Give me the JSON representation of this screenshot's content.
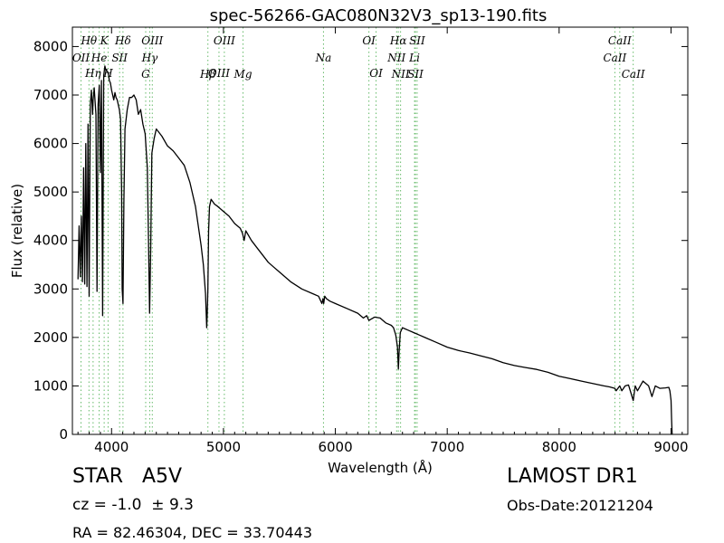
{
  "chart_data": {
    "type": "line",
    "title": "spec-56266-GAC080N32V3_sp13-190.fits",
    "xlabel": "Wavelength (Å)",
    "ylabel": "Flux (relative)",
    "xlim": [
      3650,
      9150
    ],
    "ylim": [
      0,
      8400
    ],
    "x_ticks": [
      4000,
      5000,
      6000,
      7000,
      8000,
      9000
    ],
    "y_ticks": [
      0,
      1000,
      2000,
      3000,
      4000,
      5000,
      6000,
      7000,
      8000
    ],
    "grid": false,
    "series": [
      {
        "x": [
          3700,
          3710,
          3720,
          3730,
          3740,
          3750,
          3760,
          3770,
          3780,
          3790,
          3800,
          3810,
          3820,
          3830,
          3835,
          3845,
          3860,
          3870,
          3880,
          3890,
          3900,
          3910,
          3920,
          3930,
          3940,
          3950,
          3960,
          3970,
          3980,
          3990,
          4000,
          4010,
          4020,
          4030,
          4040,
          4050,
          4060,
          4070,
          4080,
          4090,
          4095,
          4102,
          4110,
          4120,
          4140,
          4160,
          4180,
          4200,
          4220,
          4240,
          4260,
          4280,
          4300,
          4320,
          4330,
          4340,
          4350,
          4360,
          4380,
          4400,
          4450,
          4500,
          4550,
          4600,
          4650,
          4700,
          4750,
          4800,
          4820,
          4840,
          4850,
          4855,
          4861,
          4867,
          4875,
          4890,
          4920,
          4950,
          5000,
          5050,
          5100,
          5150,
          5170,
          5185,
          5200,
          5250,
          5300,
          5350,
          5400,
          5450,
          5500,
          5600,
          5700,
          5800,
          5850,
          5880,
          5890,
          5896,
          5905,
          5920,
          5950,
          6000,
          6100,
          6200,
          6250,
          6280,
          6300,
          6350,
          6400,
          6450,
          6500,
          6520,
          6540,
          6555,
          6563,
          6570,
          6580,
          6600,
          6650,
          6700,
          6750,
          6800,
          6900,
          7000,
          7100,
          7200,
          7300,
          7400,
          7500,
          7600,
          7650,
          7700,
          7800,
          7900,
          8000,
          8100,
          8200,
          8300,
          8400,
          8450,
          8498,
          8510,
          8542,
          8560,
          8590,
          8620,
          8662,
          8680,
          8700,
          8750,
          8800,
          8830,
          8860,
          8900,
          8950,
          8980,
          8990,
          9000,
          9005,
          9010
        ],
        "y": [
          3200,
          4300,
          3250,
          4500,
          3150,
          5500,
          3100,
          6000,
          3050,
          6400,
          2850,
          6800,
          7100,
          6600,
          6900,
          7150,
          6600,
          2950,
          6800,
          7200,
          5400,
          7300,
          2450,
          7400,
          7600,
          7500,
          7500,
          7450,
          7300,
          7250,
          7100,
          7000,
          6900,
          7050,
          6950,
          6900,
          6800,
          6700,
          6500,
          5000,
          3000,
          2700,
          4800,
          6300,
          6700,
          6950,
          6950,
          7000,
          6900,
          6600,
          6700,
          6400,
          6200,
          5500,
          4000,
          2500,
          3800,
          5800,
          6100,
          6300,
          6150,
          5950,
          5850,
          5700,
          5550,
          5200,
          4700,
          3900,
          3500,
          2900,
          2200,
          2500,
          3000,
          4200,
          4700,
          4850,
          4750,
          4700,
          4600,
          4500,
          4350,
          4250,
          4150,
          4000,
          4200,
          4000,
          3850,
          3700,
          3550,
          3450,
          3350,
          3150,
          3000,
          2900,
          2850,
          2700,
          2800,
          2700,
          2850,
          2800,
          2750,
          2700,
          2600,
          2500,
          2400,
          2450,
          2350,
          2420,
          2400,
          2300,
          2250,
          2200,
          2050,
          1800,
          1350,
          1700,
          2100,
          2200,
          2150,
          2100,
          2050,
          2000,
          1900,
          1800,
          1730,
          1680,
          1620,
          1560,
          1480,
          1420,
          1400,
          1380,
          1340,
          1280,
          1200,
          1150,
          1100,
          1050,
          1000,
          980,
          950,
          900,
          1000,
          900,
          1000,
          1020,
          700,
          1000,
          900,
          1100,
          1000,
          780,
          1000,
          950,
          960,
          970,
          900,
          700,
          300,
          0
        ]
      }
    ],
    "annotations": [
      {
        "label": "OII",
        "x": 3727,
        "row": 2
      },
      {
        "label": "Hθ",
        "x": 3798,
        "row": 1
      },
      {
        "label": "Hη",
        "x": 3835,
        "row": 3
      },
      {
        "label": "He",
        "x": 3889,
        "row": 2
      },
      {
        "label": "K",
        "x": 3934,
        "row": 1
      },
      {
        "label": "H",
        "x": 3969,
        "row": 3
      },
      {
        "label": "SII",
        "x": 4072,
        "row": 2
      },
      {
        "label": "Hδ",
        "x": 4102,
        "row": 1
      },
      {
        "label": "G",
        "x": 4305,
        "row": 4
      },
      {
        "label": "Hγ",
        "x": 4341,
        "row": 2
      },
      {
        "label": "OIII",
        "x": 4364,
        "row": 1
      },
      {
        "label": "Hβ",
        "x": 4861,
        "row": 4
      },
      {
        "label": "OIII",
        "x": 4960,
        "row": 3
      },
      {
        "label": "OIII",
        "x": 5008,
        "row": 1
      },
      {
        "label": "Mg",
        "x": 5175,
        "row": 4
      },
      {
        "label": "Na",
        "x": 5894,
        "row": 2
      },
      {
        "label": "OI",
        "x": 6300,
        "row": 1
      },
      {
        "label": "OI",
        "x": 6364,
        "row": 3
      },
      {
        "label": "NII",
        "x": 6548,
        "row": 2
      },
      {
        "label": "Hα",
        "x": 6563,
        "row": 1
      },
      {
        "label": "NII",
        "x": 6583,
        "row": 4
      },
      {
        "label": "Li",
        "x": 6708,
        "row": 2
      },
      {
        "label": "SII",
        "x": 6716,
        "row": 4
      },
      {
        "label": "SII",
        "x": 6731,
        "row": 1
      },
      {
        "label": "CaII",
        "x": 8498,
        "row": 2
      },
      {
        "label": "CaII",
        "x": 8542,
        "row": 1
      },
      {
        "label": "CaII",
        "x": 8662,
        "row": 4
      }
    ]
  },
  "footer": {
    "object_class": "STAR",
    "subclass": "A5V",
    "redshift": "cz = -1.0  ± 9.3",
    "coords": "RA = 82.46304, DEC = 33.70443",
    "survey": "LAMOST DR1",
    "obs_date": "Obs-Date:20121204"
  }
}
